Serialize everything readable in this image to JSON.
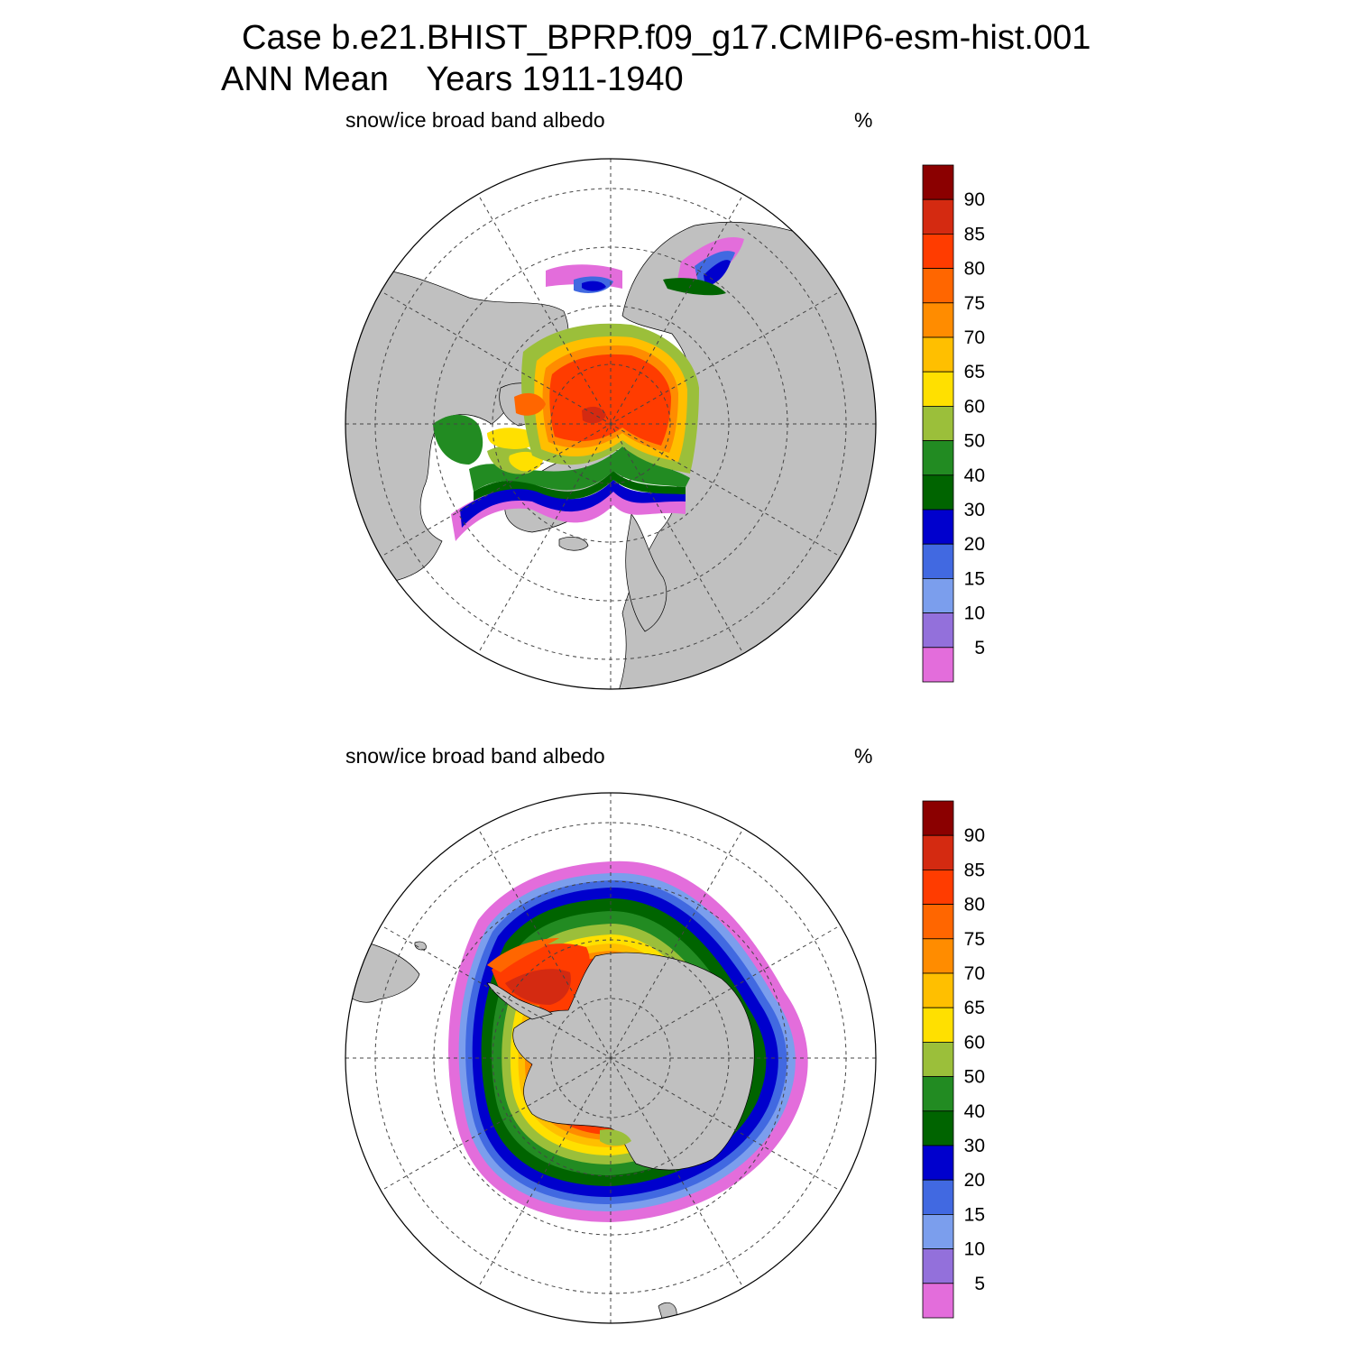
{
  "title": {
    "line1": "Case b.e21.BHIST_BPRP.f09_g17.CMIP6-esm-hist.001",
    "line2": "ANN Mean    Years 1911-1940"
  },
  "panels": [
    {
      "id": "north",
      "hemisphere": "Northern",
      "variable": "snow/ice broad band albedo",
      "units": "%"
    },
    {
      "id": "south",
      "hemisphere": "Southern",
      "variable": "snow/ice broad band albedo",
      "units": "%"
    }
  ],
  "colorbar": {
    "levels": [
      "90",
      "85",
      "80",
      "75",
      "70",
      "65",
      "60",
      "50",
      "40",
      "30",
      "20",
      "15",
      "10",
      "5"
    ],
    "colors": [
      "#8b0000",
      "#d42a11",
      "#ff3c00",
      "#ff6600",
      "#ff8c00",
      "#ffbf00",
      "#ffe000",
      "#9bbf3a",
      "#228b22",
      "#006400",
      "#0000cd",
      "#4169e1",
      "#7b9eed",
      "#9370db",
      "#e36ddb"
    ]
  },
  "map_style": {
    "land_color": "#c0c0c0",
    "ocean_color": "#ffffff",
    "grid_line_color": "#444444"
  }
}
